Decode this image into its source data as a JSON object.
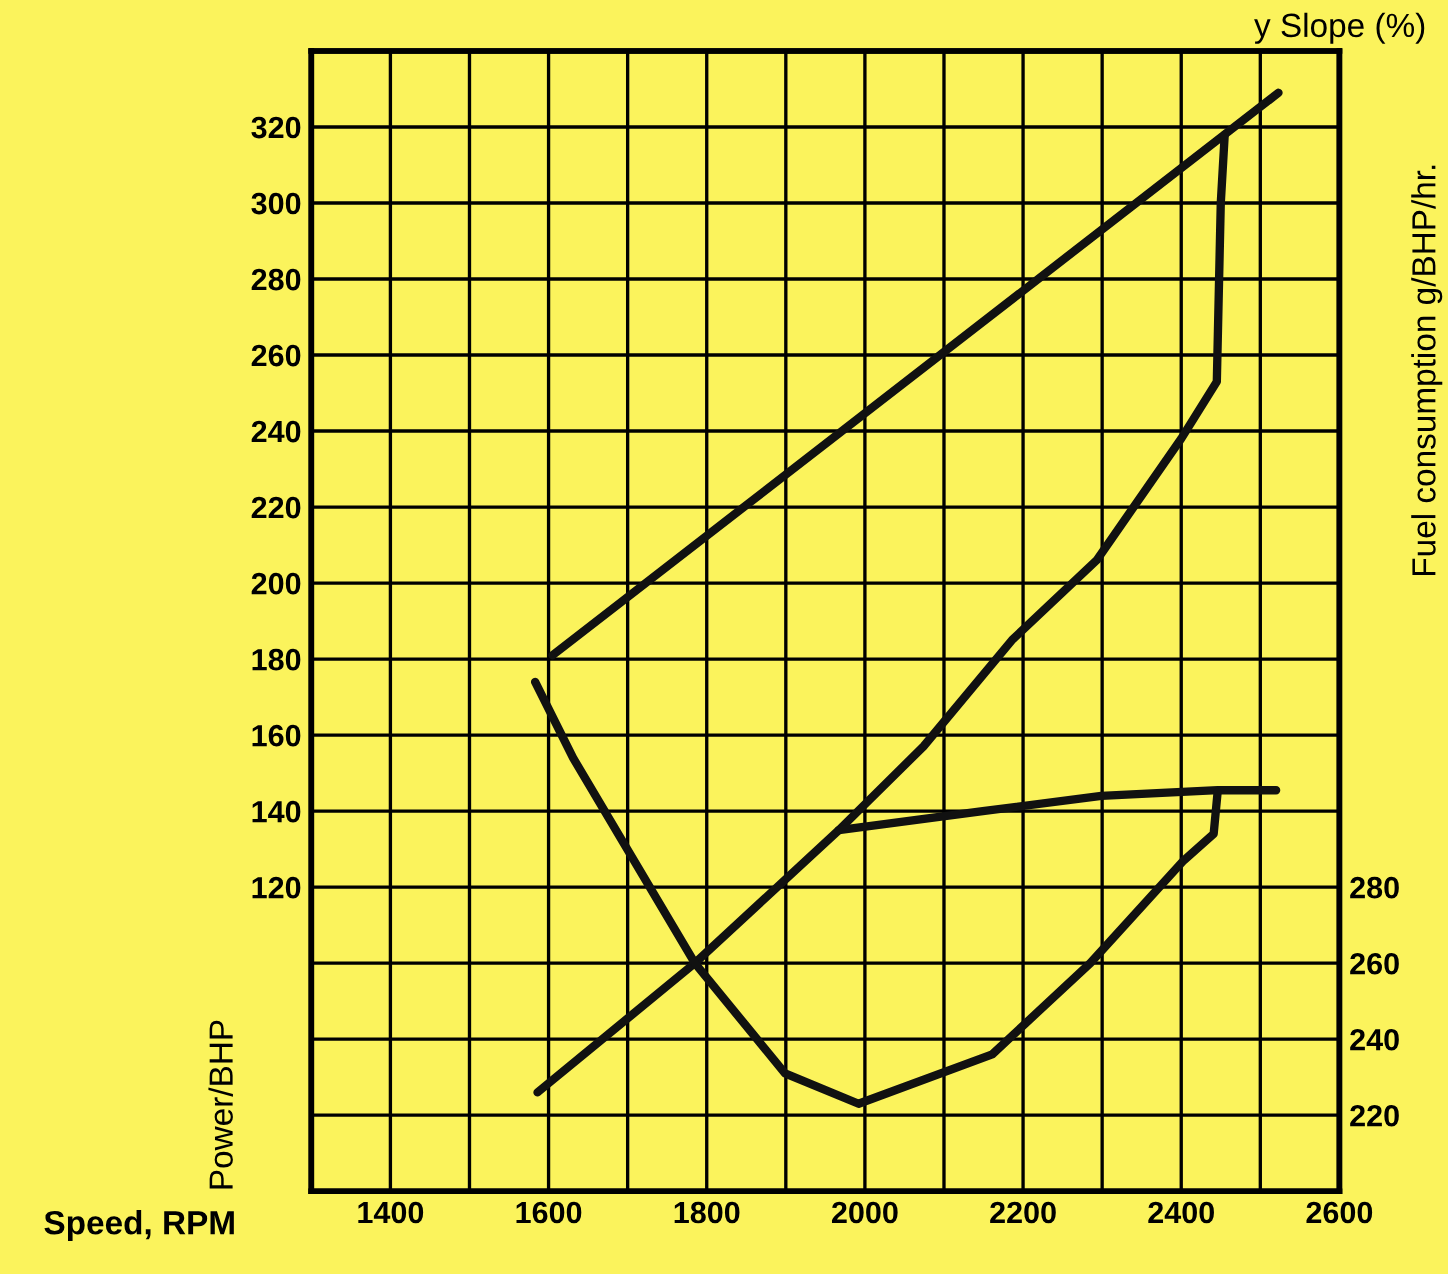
{
  "chart_data": {
    "type": "line",
    "xlabel": "Speed, RPM",
    "ylabel": "Power/BHP",
    "y2label": "Fuel consumption g/BHP/hr.",
    "annotations": [
      "y Slope (%)"
    ],
    "xlim": [
      1300,
      2600
    ],
    "xticks": [
      {
        "value": 1300,
        "label": null
      },
      1400,
      {
        "value": 1500,
        "label": null
      },
      1600,
      {
        "value": 1700,
        "label": null
      },
      1800,
      {
        "value": 1900,
        "label": null
      },
      2000,
      {
        "value": 2100,
        "label": null
      },
      2200,
      {
        "value": 2300,
        "label": null
      },
      2400,
      {
        "value": 2500,
        "label": null
      },
      2600
    ],
    "ylim": [
      40,
      340
    ],
    "yticks": [
      {
        "value": 40,
        "label": null
      },
      {
        "value": 60,
        "label": null
      },
      {
        "value": 80,
        "label": null
      },
      {
        "value": 100,
        "label": null
      },
      120,
      140,
      160,
      180,
      200,
      220,
      240,
      260,
      280,
      300,
      320,
      {
        "value": 340,
        "label": null
      }
    ],
    "y2lim": [
      200,
      500
    ],
    "y2ticks": [
      220,
      240,
      260,
      280
    ],
    "grid": true,
    "marker": "none",
    "line_style": "solid",
    "series": [
      {
        "color": "#111111",
        "x": [
          1605,
          2523
        ],
        "values": [
          181,
          329
        ]
      },
      {
        "color": "#111111",
        "x": [
          1586,
          1785,
          1967,
          2074,
          2186,
          2293,
          2400,
          2445,
          2450,
          2455
        ],
        "values": [
          66,
          100,
          135,
          157,
          185,
          206,
          238,
          253,
          300,
          318
        ]
      },
      {
        "color": "#111111",
        "x": [
          1967,
          2149,
          2299,
          2446,
          2520
        ],
        "values": [
          135,
          140,
          144,
          145.5,
          145.5
        ]
      },
      {
        "color": "#111111",
        "axis": "y2",
        "x": [
          1583,
          1631,
          1785,
          1899,
          1992,
          2161,
          2285,
          2403,
          2441,
          2446
        ],
        "values": [
          334,
          314,
          260,
          231,
          223,
          236,
          260,
          287,
          294,
          305
        ]
      }
    ]
  }
}
